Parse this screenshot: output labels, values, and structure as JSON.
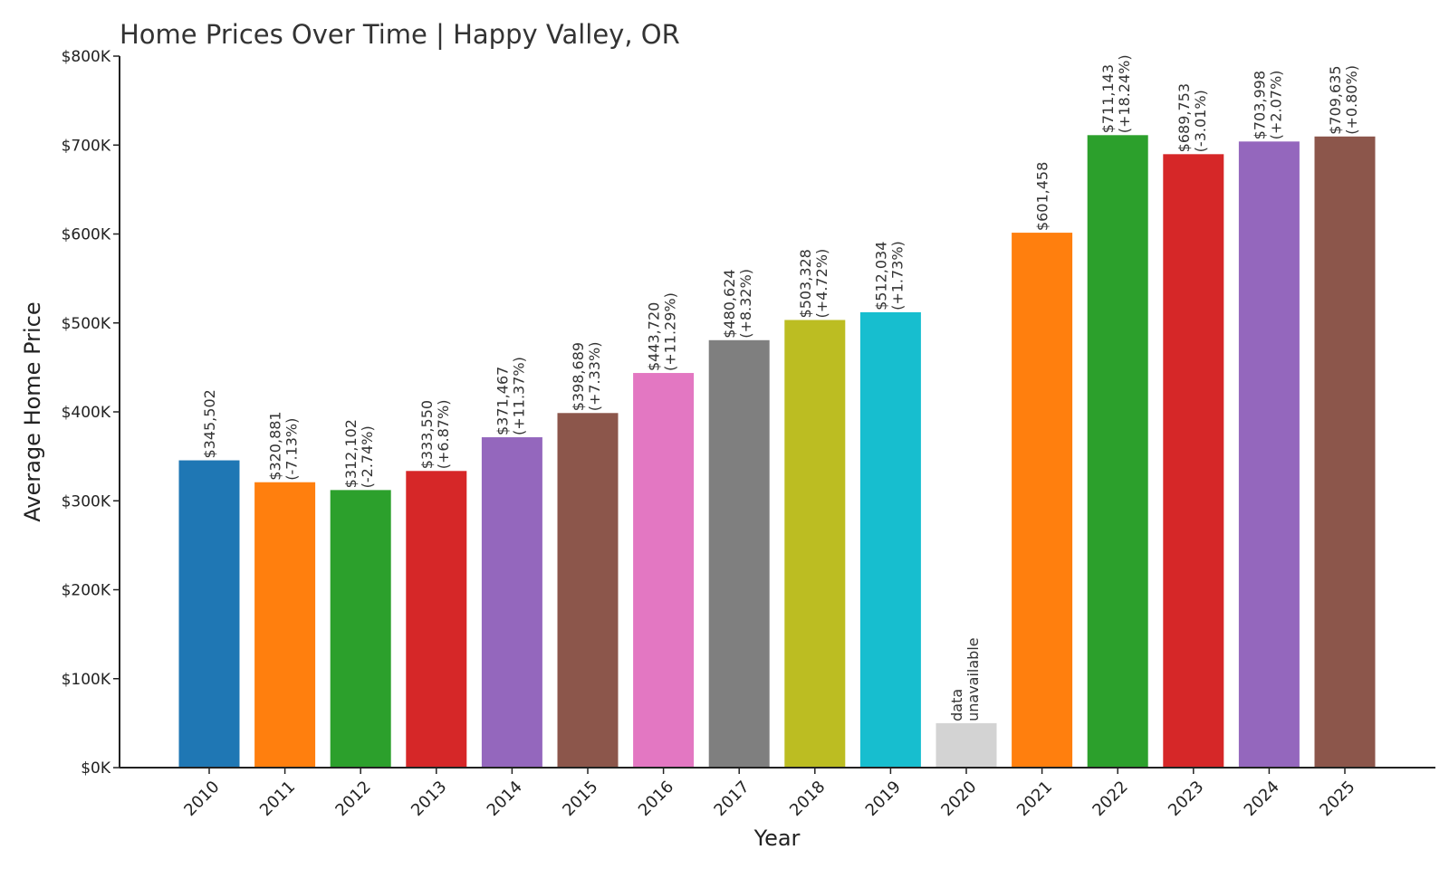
{
  "chart_data": {
    "type": "bar",
    "title": "Home Prices Over Time | Happy Valley, OR",
    "xlabel": "Year",
    "ylabel": "Average Home Price",
    "ylim": [
      0,
      800000
    ],
    "yticks": [
      0,
      100000,
      200000,
      300000,
      400000,
      500000,
      600000,
      700000,
      800000
    ],
    "ytick_labels": [
      "$0K",
      "$100K",
      "$200K",
      "$300K",
      "$400K",
      "$500K",
      "$600K",
      "$700K",
      "$800K"
    ],
    "grid": false,
    "categories": [
      "2010",
      "2011",
      "2012",
      "2013",
      "2014",
      "2015",
      "2016",
      "2017",
      "2018",
      "2019",
      "2020",
      "2021",
      "2022",
      "2023",
      "2024",
      "2025"
    ],
    "values": [
      345502,
      320881,
      312102,
      333550,
      371467,
      398689,
      443720,
      480624,
      503328,
      512034,
      50000,
      601458,
      711143,
      689753,
      703998,
      709635
    ],
    "price_labels": [
      "$345,502",
      "$320,881",
      "$312,102",
      "$333,550",
      "$371,467",
      "$398,689",
      "$443,720",
      "$480,624",
      "$503,328",
      "$512,034",
      "data",
      "$601,458",
      "$711,143",
      "$689,753",
      "$703,998",
      "$709,635"
    ],
    "change_labels": [
      "",
      "(-7.13%)",
      "(-2.74%)",
      "(+6.87%)",
      "(+11.37%)",
      "(+7.33%)",
      "(+11.29%)",
      "(+8.32%)",
      "(+4.72%)",
      "(+1.73%)",
      "unavailable",
      "",
      "(+18.24%)",
      "(-3.01%)",
      "(+2.07%)",
      "(+0.80%)"
    ],
    "colors": [
      "#1f77b4",
      "#ff7f0e",
      "#2ca02c",
      "#d62728",
      "#9467bd",
      "#8c564b",
      "#e377c2",
      "#7f7f7f",
      "#bcbd22",
      "#17becf",
      "#d3d3d3",
      "#ff7f0e",
      "#2ca02c",
      "#d62728",
      "#9467bd",
      "#8c564b"
    ]
  }
}
